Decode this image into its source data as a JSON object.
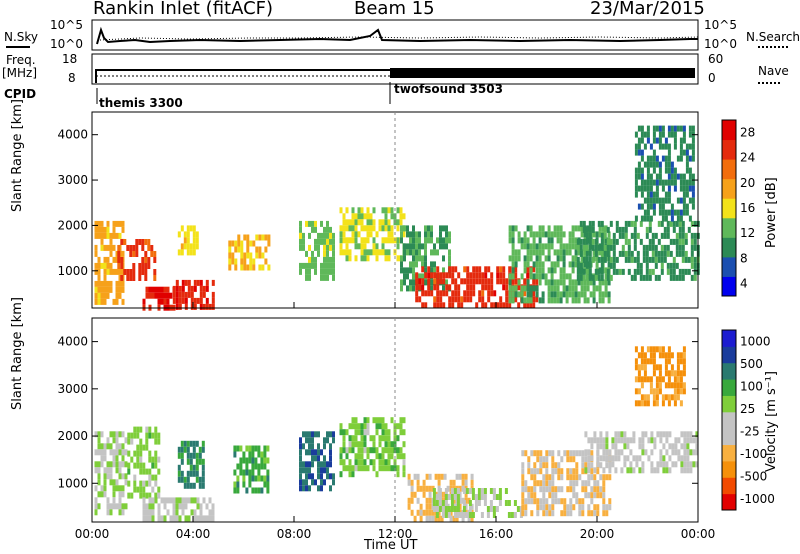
{
  "header": {
    "station": "Rankin Inlet (fitACF)",
    "beam": "Beam 15",
    "date": "23/Mar/2015"
  },
  "status_panel": {
    "nsky_label": "N.Sky",
    "nsky_tick_top": "10^5",
    "nsky_tick_bottom": "10^0",
    "nsearch_label": "N.Search",
    "nsearch_tick_top": "10^5",
    "nsearch_tick_bottom": "10^0",
    "freq_label": "Freq.",
    "freq_unit": "[MHz]",
    "freq_tick_top": "18",
    "freq_tick_bottom": "8",
    "nave_label": "Nave",
    "nave_tick_top": "60",
    "nave_tick_bottom": "0",
    "cpid_label": "CPID",
    "cpid_modes": [
      {
        "name": "themis 3300",
        "start_hour": 0.0
      },
      {
        "name": "twofsound 3503",
        "start_hour": 12.0
      }
    ]
  },
  "colors": {
    "power_scale": [
      "#0000ee",
      "#1b4fb0",
      "#2c8a55",
      "#5fb85a",
      "#f3e21a",
      "#f6a11a",
      "#f26d0c",
      "#e42a0d",
      "#e00000"
    ],
    "velocity_scale": [
      "#e20000",
      "#f24a00",
      "#f5900a",
      "#f8b040",
      "#c4c4c4",
      "#c4c4c4",
      "#7fce3a",
      "#38a83c",
      "#2a7a70",
      "#1a3c9c",
      "#1c1cd0"
    ]
  },
  "chart_data": [
    {
      "type": "heatmap",
      "name": "power",
      "ylabel": "Slant Range [km]",
      "xlabel": "",
      "xlim": [
        0,
        24
      ],
      "ylim": [
        180,
        4500
      ],
      "y_ticks": [
        "1000",
        "2000",
        "3000",
        "4000"
      ],
      "x_ticks": [
        "00:00",
        "04:00",
        "08:00",
        "12:00",
        "16:00",
        "20:00",
        "00:00"
      ],
      "colorbar": {
        "label": "Power [dB]",
        "ticks": [
          "28",
          "24",
          "20",
          "16",
          "12",
          "8",
          "4"
        ],
        "range": [
          0,
          30
        ]
      },
      "regions": [
        {
          "t0": 0.1,
          "t1": 1.2,
          "r0": 350,
          "r1": 2100,
          "v": 18
        },
        {
          "t0": 1.0,
          "t1": 2.5,
          "r0": 900,
          "r1": 1700,
          "v": 24
        },
        {
          "t0": 2.0,
          "t1": 3.2,
          "r0": 200,
          "r1": 650,
          "v": 27
        },
        {
          "t0": 3.2,
          "t1": 4.8,
          "r0": 200,
          "r1": 800,
          "v": 26
        },
        {
          "t0": 3.4,
          "t1": 4.2,
          "r0": 1400,
          "r1": 2000,
          "v": 15
        },
        {
          "t0": 5.4,
          "t1": 7.0,
          "r0": 1100,
          "r1": 1800,
          "v": 17
        },
        {
          "t0": 8.2,
          "t1": 9.6,
          "r0": 900,
          "r1": 2100,
          "v": 12
        },
        {
          "t0": 9.8,
          "t1": 12.4,
          "r0": 1300,
          "r1": 2400,
          "v": 14
        },
        {
          "t0": 12.2,
          "t1": 14.2,
          "r0": 600,
          "r1": 2000,
          "v": 10
        },
        {
          "t0": 12.8,
          "t1": 17.6,
          "r0": 250,
          "r1": 1100,
          "v": 25
        },
        {
          "t0": 16.5,
          "t1": 20.5,
          "r0": 400,
          "r1": 2000,
          "v": 11
        },
        {
          "t0": 19.2,
          "t1": 24.0,
          "r0": 900,
          "r1": 2100,
          "v": 9
        },
        {
          "t0": 21.5,
          "t1": 23.8,
          "r0": 2200,
          "r1": 4200,
          "v": 8
        }
      ]
    },
    {
      "type": "heatmap",
      "name": "velocity",
      "ylabel": "Slant Range [km]",
      "xlabel": "Time UT",
      "xlim": [
        0,
        24
      ],
      "ylim": [
        180,
        4500
      ],
      "y_ticks": [
        "1000",
        "2000",
        "3000",
        "4000"
      ],
      "x_ticks": [
        "00:00",
        "04:00",
        "08:00",
        "12:00",
        "16:00",
        "20:00",
        "00:00"
      ],
      "colorbar": {
        "label": "Velocity [m s⁻¹]",
        "ticks": [
          "1000",
          "500",
          "100",
          "25",
          "-25",
          "-100",
          "-500",
          "-1000"
        ],
        "range": [
          -1000,
          1000
        ]
      },
      "regions": [
        {
          "t0": 0.1,
          "t1": 1.3,
          "r0": 350,
          "r1": 2100,
          "v": 80
        },
        {
          "t0": 1.4,
          "t1": 2.6,
          "r0": 700,
          "r1": 2200,
          "v": 180
        },
        {
          "t0": 2.0,
          "t1": 4.8,
          "r0": 200,
          "r1": 700,
          "v": 40
        },
        {
          "t0": 3.4,
          "t1": 4.4,
          "r0": 900,
          "r1": 1900,
          "v": 500
        },
        {
          "t0": 5.6,
          "t1": 7.0,
          "r0": 900,
          "r1": 1800,
          "v": 350
        },
        {
          "t0": 8.2,
          "t1": 9.6,
          "r0": 900,
          "r1": 2100,
          "v": 600
        },
        {
          "t0": 9.8,
          "t1": 12.4,
          "r0": 1200,
          "r1": 2400,
          "v": 200
        },
        {
          "t0": 12.5,
          "t1": 15.0,
          "r0": 300,
          "r1": 1200,
          "v": -300
        },
        {
          "t0": 13.5,
          "t1": 17.0,
          "r0": 300,
          "r1": 900,
          "v": 70
        },
        {
          "t0": 17.0,
          "t1": 20.5,
          "r0": 350,
          "r1": 1700,
          "v": -250
        },
        {
          "t0": 19.5,
          "t1": 24.0,
          "r0": 1300,
          "r1": 2100,
          "v": 5
        },
        {
          "t0": 21.5,
          "t1": 23.5,
          "r0": 2700,
          "r1": 3900,
          "v": -500
        }
      ]
    }
  ]
}
